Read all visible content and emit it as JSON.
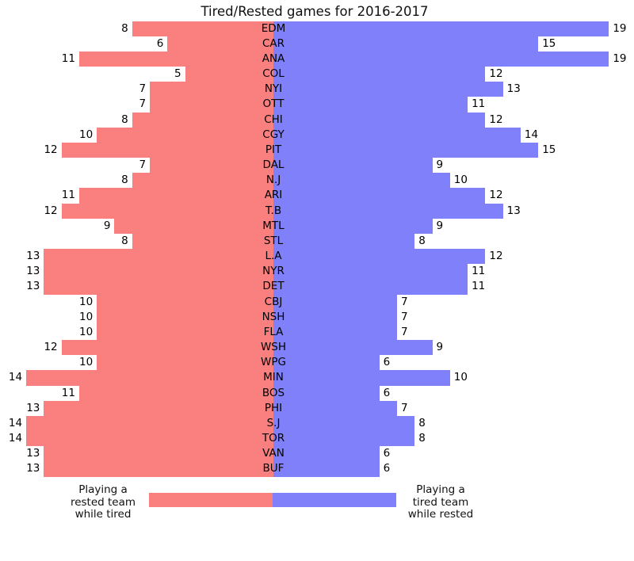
{
  "title": "Tired/Rested games for 2016-2017",
  "colors": {
    "tired_side": "#fa8080",
    "rested_side": "#8080fa",
    "text": "#000000",
    "background": "#ffffff"
  },
  "legend": {
    "left_lines": [
      "Playing a",
      "rested team",
      "while tired"
    ],
    "right_lines": [
      "Playing a",
      "tired team",
      "while rested"
    ]
  },
  "chart_data": {
    "type": "bar",
    "orientation": "horizontal-diverging",
    "title": "Tired/Rested games for 2016-2017",
    "categories": [
      "EDM",
      "CAR",
      "ANA",
      "COL",
      "NYI",
      "OTT",
      "CHI",
      "CGY",
      "PIT",
      "DAL",
      "N.J",
      "ARI",
      "T.B",
      "MTL",
      "STL",
      "L.A",
      "NYR",
      "DET",
      "CBJ",
      "NSH",
      "FLA",
      "WSH",
      "WPG",
      "MIN",
      "BOS",
      "PHI",
      "S.J",
      "TOR",
      "VAN",
      "BUF"
    ],
    "series": [
      {
        "name": "Playing a rested team while tired",
        "side": "left",
        "color": "#fa8080",
        "values": [
          8,
          6,
          11,
          5,
          7,
          7,
          8,
          10,
          12,
          7,
          8,
          11,
          12,
          9,
          8,
          13,
          13,
          13,
          10,
          10,
          10,
          12,
          10,
          14,
          11,
          13,
          14,
          14,
          13,
          13
        ]
      },
      {
        "name": "Playing a tired team while rested",
        "side": "right",
        "color": "#8080fa",
        "values": [
          19,
          15,
          19,
          12,
          13,
          11,
          12,
          14,
          15,
          9,
          10,
          12,
          13,
          9,
          8,
          12,
          11,
          11,
          7,
          7,
          7,
          9,
          6,
          10,
          6,
          7,
          8,
          8,
          6,
          6
        ]
      }
    ],
    "value_labels": true,
    "axes_visible": false,
    "grid": false,
    "legend_position": "bottom-center"
  }
}
